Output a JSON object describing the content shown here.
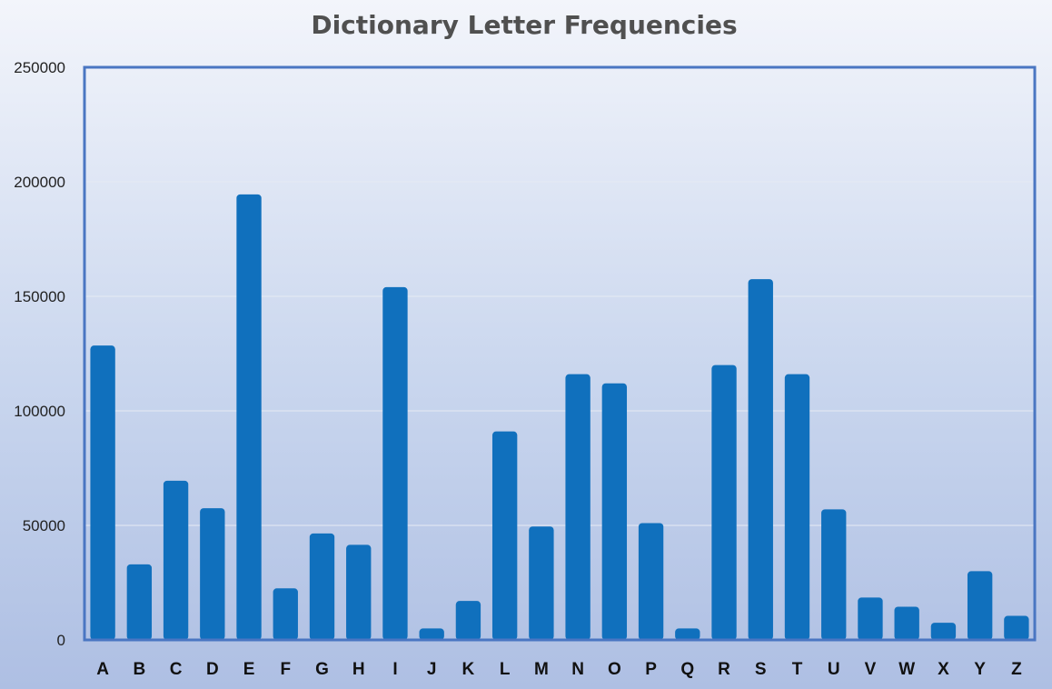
{
  "chart_data": {
    "type": "bar",
    "title": "Dictionary Letter Frequencies",
    "xlabel": "",
    "ylabel": "",
    "categories": [
      "A",
      "B",
      "C",
      "D",
      "E",
      "F",
      "G",
      "H",
      "I",
      "J",
      "K",
      "L",
      "M",
      "N",
      "O",
      "P",
      "Q",
      "R",
      "S",
      "T",
      "U",
      "V",
      "W",
      "X",
      "Y",
      "Z"
    ],
    "values": [
      128500,
      33000,
      69500,
      57500,
      194500,
      22500,
      46500,
      41500,
      154000,
      5000,
      17000,
      91000,
      49500,
      116000,
      112000,
      51000,
      5000,
      120000,
      157500,
      116000,
      57000,
      18500,
      14500,
      7500,
      30000,
      10500
    ],
    "ylim": [
      0,
      250000
    ],
    "yticks": [
      "0",
      "50000",
      "100000",
      "150000",
      "200000",
      "250000"
    ],
    "grid": true,
    "colors": {
      "bar": "#1070bd",
      "frame": "#4a76c2"
    }
  }
}
